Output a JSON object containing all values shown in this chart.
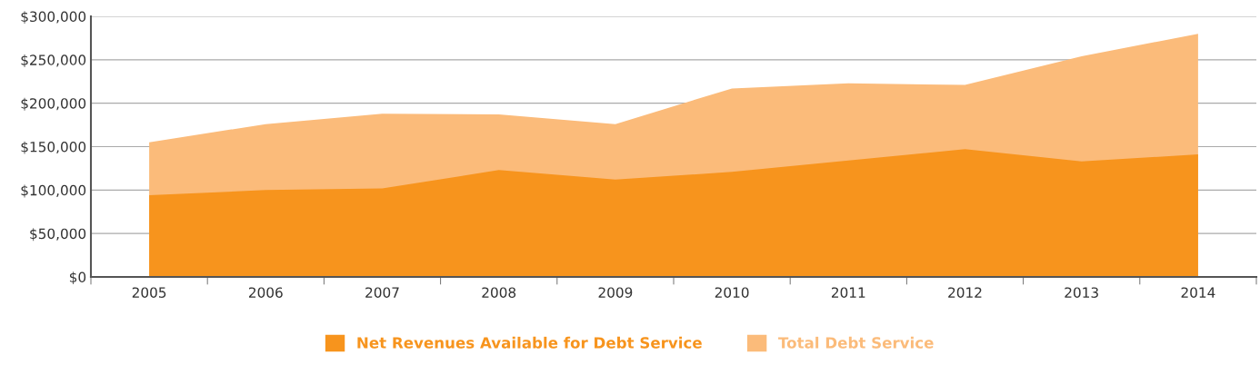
{
  "chart_data": {
    "type": "area",
    "categories": [
      "2005",
      "2006",
      "2007",
      "2008",
      "2009",
      "2010",
      "2011",
      "2012",
      "2013",
      "2014"
    ],
    "series": [
      {
        "name": "Total Debt Service",
        "color": "#fbbb7a",
        "values": [
          155000,
          176000,
          188000,
          187000,
          176000,
          217000,
          223000,
          221000,
          254000,
          280000
        ]
      },
      {
        "name": "Net Revenues Available for Debt Service",
        "color": "#f7941d",
        "values": [
          94000,
          100000,
          102000,
          123000,
          112000,
          121000,
          134000,
          147000,
          133000,
          141000
        ]
      }
    ],
    "ylim": [
      0,
      300000
    ],
    "yticks": [
      {
        "value": 0,
        "label": "$0"
      },
      {
        "value": 50000,
        "label": "$50,000"
      },
      {
        "value": 100000,
        "label": "$100,000"
      },
      {
        "value": 150000,
        "label": "$150,000"
      },
      {
        "value": 200000,
        "label": "$200,000"
      },
      {
        "value": 250000,
        "label": "$250,000"
      },
      {
        "value": 300000,
        "label": "$300,000"
      }
    ],
    "grid": "y",
    "legend": "bottom"
  }
}
